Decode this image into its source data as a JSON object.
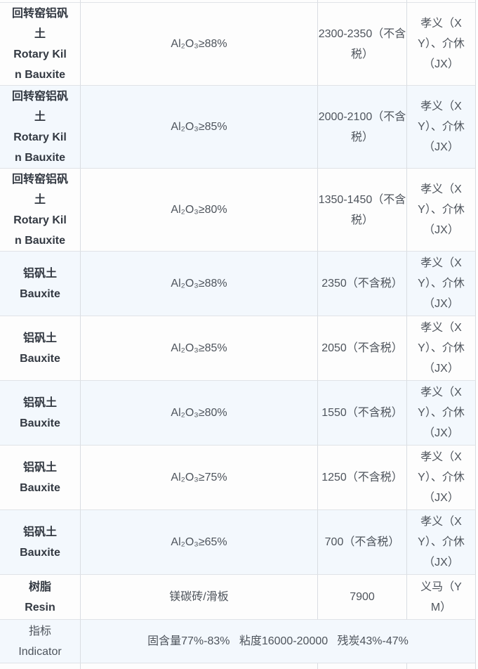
{
  "colors": {
    "row_bg": "#fdfdfd",
    "row_alt_bg": "#f3f8fd",
    "border": "#dde1e6",
    "text": "#4e545c",
    "bold_text": "#333942"
  },
  "table": {
    "rows": [
      {
        "product": "回转窑铝矾\n土\nRotary Kil\nn Bauxite",
        "spec": "Al₂O₃≥88%",
        "price": "2300-2350（不含\n税）",
        "region": "孝义（X\nY）、介休\n（JX）"
      },
      {
        "product": "回转窑铝矾\n土\nRotary Kil\nn Bauxite",
        "spec": "Al₂O₃≥85%",
        "price": "2000-2100（不含\n税）",
        "region": "孝义（X\nY）、介休\n（JX）"
      },
      {
        "product": "回转窑铝矾\n土\nRotary Kil\nn Bauxite",
        "spec": "Al₂O₃≥80%",
        "price": "1350-1450（不含\n税）",
        "region": "孝义（X\nY）、介休\n（JX）"
      },
      {
        "product": "铝矾土\nBauxite",
        "spec": "Al₂O₃≥88%",
        "price": "2350（不含税）",
        "region": "孝义（X\nY）、介休\n（JX）"
      },
      {
        "product": "铝矾土\nBauxite",
        "spec": "Al₂O₃≥85%",
        "price": "2050（不含税）",
        "region": "孝义（X\nY）、介休\n（JX）"
      },
      {
        "product": "铝矾土\nBauxite",
        "spec": "Al₂O₃≥80%",
        "price": "1550（不含税）",
        "region": "孝义（X\nY）、介休\n（JX）"
      },
      {
        "product": "铝矾土\nBauxite",
        "spec": "Al₂O₃≥75%",
        "price": "1250（不含税）",
        "region": "孝义（X\nY）、介休\n（JX）"
      },
      {
        "product": "铝矾土\nBauxite",
        "spec": "Al₂O₃≥65%",
        "price": "700（不含税）",
        "region": "孝义（X\nY）、介休\n（JX）"
      },
      {
        "product": "树脂\nResin",
        "spec": "镁碳砖/滑板",
        "price": "7900",
        "region": "义马（Y\nM）"
      },
      {
        "product": "指标\nIndicator",
        "indicator": "固含量77%-83%   粘度16000-20000   残炭43%-47%"
      }
    ]
  }
}
